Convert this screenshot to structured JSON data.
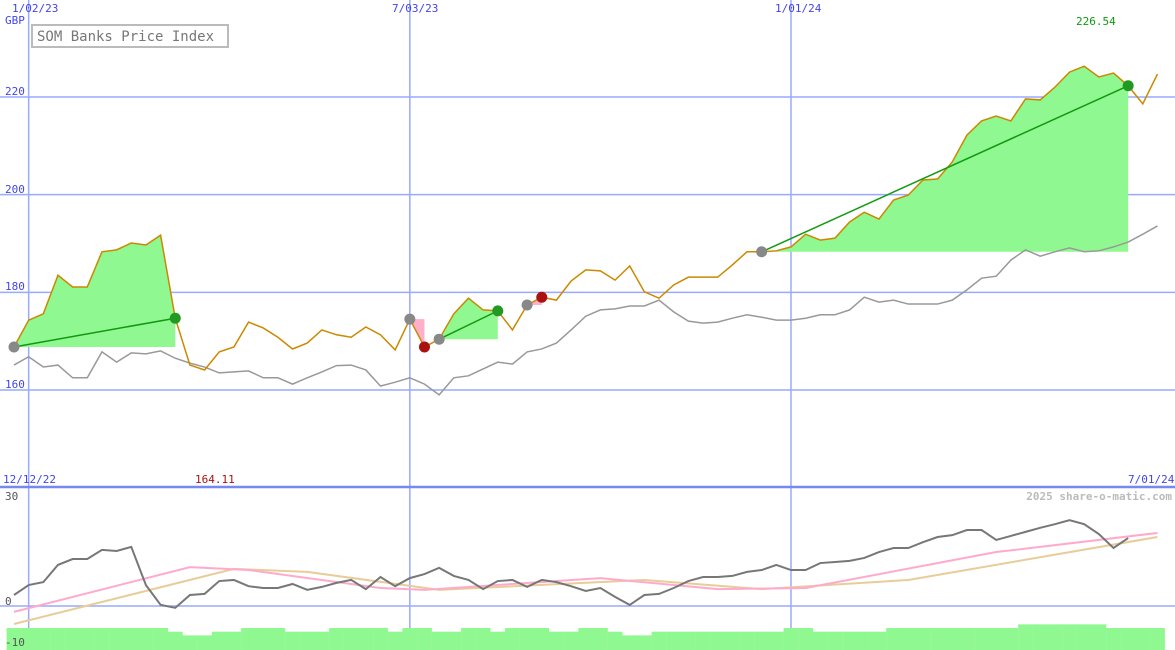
{
  "chart_data": [
    {
      "type": "line",
      "title": "SOM Banks Price Index",
      "ylabel": "GBP",
      "ylim": [
        154,
        230
      ],
      "y_ticks": [
        "160",
        "180",
        "200",
        "220"
      ],
      "x_ticks": [
        "1/02/23",
        "7/03/23",
        "1/01/24"
      ],
      "x_tick_dates": [
        "2023-01-02",
        "2023-07-03",
        "2024-01-01"
      ],
      "grid": true,
      "max_label": "226.54",
      "colors": {
        "price": "#cc8800",
        "benchmark": "#999999",
        "grid": "#99aaff",
        "gain_fill": "#90f890",
        "loss_fill": "#ffb0c8",
        "trade_line": "#119911",
        "max_label": "#119911",
        "min_label": "#aa1111"
      },
      "dates": [
        "2022-12-26",
        "2023-01-02",
        "2023-01-09",
        "2023-01-16",
        "2023-01-23",
        "2023-01-30",
        "2023-02-06",
        "2023-02-13",
        "2023-02-20",
        "2023-02-27",
        "2023-03-06",
        "2023-03-13",
        "2023-03-20",
        "2023-03-27",
        "2023-04-03",
        "2023-04-10",
        "2023-04-17",
        "2023-04-24",
        "2023-05-01",
        "2023-05-08",
        "2023-05-15",
        "2023-05-22",
        "2023-05-29",
        "2023-06-05",
        "2023-06-12",
        "2023-06-19",
        "2023-06-26",
        "2023-07-03",
        "2023-07-10",
        "2023-07-17",
        "2023-07-24",
        "2023-07-31",
        "2023-08-07",
        "2023-08-14",
        "2023-08-21",
        "2023-08-28",
        "2023-09-04",
        "2023-09-11",
        "2023-09-18",
        "2023-09-25",
        "2023-10-02",
        "2023-10-09",
        "2023-10-16",
        "2023-10-23",
        "2023-10-30",
        "2023-11-06",
        "2023-11-13",
        "2023-11-20",
        "2023-11-27",
        "2023-12-04",
        "2023-12-11",
        "2023-12-18",
        "2023-12-25",
        "2024-01-01",
        "2024-01-08",
        "2024-01-15",
        "2024-01-22",
        "2024-01-29",
        "2024-02-05",
        "2024-02-12",
        "2024-02-19",
        "2024-02-26",
        "2024-03-04",
        "2024-03-11",
        "2024-03-18",
        "2024-03-25",
        "2024-04-01",
        "2024-04-08",
        "2024-04-15",
        "2024-04-22",
        "2024-04-29",
        "2024-05-06",
        "2024-05-13",
        "2024-05-20",
        "2024-05-27",
        "2024-06-03",
        "2024-06-10",
        "2024-06-17",
        "2024-06-24"
      ],
      "series": [
        {
          "key": "price",
          "values": [
            168.8,
            174.3,
            175.6,
            183.5,
            181.1,
            181.1,
            188.3,
            188.7,
            190.1,
            189.7,
            191.7,
            174.7,
            165.1,
            164.1,
            167.8,
            168.8,
            173.9,
            172.7,
            170.8,
            168.4,
            169.6,
            172.3,
            171.3,
            170.8,
            172.9,
            171.3,
            168.2,
            174.5,
            168.8,
            170.4,
            175.6,
            178.8,
            176.4,
            176.2,
            172.3,
            177.4,
            179.0,
            178.4,
            182.3,
            184.6,
            184.4,
            182.5,
            185.4,
            180.1,
            178.8,
            181.5,
            183.1,
            183.1,
            183.1,
            185.6,
            188.3,
            188.3,
            188.5,
            189.3,
            191.9,
            190.7,
            191.1,
            194.4,
            196.4,
            195.0,
            198.9,
            199.9,
            203.0,
            203.2,
            206.7,
            212.2,
            215.1,
            216.1,
            215.1,
            219.6,
            219.4,
            222.0,
            225.1,
            226.3,
            224.1,
            224.9,
            222.3,
            218.6,
            224.7
          ]
        },
        {
          "key": "benchmark",
          "values": [
            165.1,
            166.8,
            164.7,
            165.1,
            162.5,
            162.5,
            167.8,
            165.7,
            167.6,
            167.4,
            168.0,
            166.5,
            165.5,
            164.7,
            163.5,
            163.7,
            163.9,
            162.5,
            162.5,
            161.2,
            162.5,
            163.7,
            165.0,
            165.1,
            164.1,
            160.8,
            161.6,
            162.5,
            161.2,
            159.0,
            162.5,
            162.9,
            164.3,
            165.7,
            165.3,
            167.8,
            168.4,
            169.6,
            172.3,
            175.1,
            176.4,
            176.6,
            177.2,
            177.2,
            178.4,
            176.0,
            174.1,
            173.7,
            173.9,
            174.7,
            175.4,
            174.9,
            174.3,
            174.3,
            174.7,
            175.4,
            175.4,
            176.4,
            179.0,
            178.0,
            178.4,
            177.6,
            177.6,
            177.6,
            178.4,
            180.5,
            182.9,
            183.3,
            186.6,
            188.7,
            187.4,
            188.3,
            189.1,
            188.3,
            188.5,
            189.3,
            190.3,
            191.9,
            193.6
          ]
        }
      ],
      "trades": [
        {
          "entry": "2022-12-26",
          "exit": "2023-03-13",
          "result": "gain"
        },
        {
          "entry": "2023-07-03",
          "exit": "2023-07-10",
          "result": "loss"
        },
        {
          "entry": "2023-07-17",
          "exit": "2023-08-14",
          "result": "gain"
        },
        {
          "entry": "2023-08-28",
          "exit": "2023-09-04",
          "result": "loss"
        },
        {
          "entry": "2023-12-18",
          "exit": "2024-06-10",
          "result": "gain"
        }
      ]
    },
    {
      "type": "line",
      "ylim": [
        -12,
        34
      ],
      "y_ticks": [
        "30",
        "0",
        "-10"
      ],
      "x_start_label": "12/12/22",
      "x_end_label": "7/01/24",
      "min_label": "164.11",
      "watermark": "2025 share-o-matic.com",
      "colors": {
        "momentum": "#777777",
        "fast_avg": "#ffaacc",
        "slow_avg": "#e8cc99",
        "volume": "#90f890"
      },
      "momentum": [
        3.0,
        5.7,
        6.5,
        11.2,
        12.8,
        12.8,
        15.3,
        15.0,
        16.1,
        5.7,
        0.3,
        -0.5,
        3.0,
        3.3,
        6.8,
        7.1,
        5.4,
        4.9,
        4.9,
        6.0,
        4.4,
        5.2,
        6.3,
        7.1,
        4.6,
        7.9,
        5.4,
        7.6,
        8.7,
        10.4,
        8.2,
        7.1,
        4.6,
        6.8,
        7.1,
        5.2,
        7.1,
        6.5,
        5.4,
        4.1,
        4.9,
        2.5,
        0.3,
        3.0,
        3.3,
        4.9,
        6.8,
        7.9,
        7.9,
        8.2,
        9.3,
        9.8,
        11.2,
        9.8,
        9.8,
        11.7,
        12.0,
        12.3,
        13.1,
        14.7,
        15.8,
        15.8,
        17.4,
        18.8,
        19.3,
        20.7,
        20.7,
        18.0,
        19.1,
        20.2,
        21.3,
        22.3,
        23.4,
        22.3,
        19.6,
        15.8,
        18.5
      ],
      "fast_avg": [
        [
          "2022-12-26",
          -1.6
        ],
        [
          "2023-03-20",
          10.6
        ],
        [
          "2023-04-17",
          9.8
        ],
        [
          "2023-06-19",
          4.9
        ],
        [
          "2023-07-10",
          4.4
        ],
        [
          "2023-10-02",
          7.6
        ],
        [
          "2023-11-27",
          4.6
        ],
        [
          "2024-01-08",
          4.9
        ],
        [
          "2024-04-08",
          14.7
        ],
        [
          "2024-06-24",
          19.9
        ]
      ],
      "slow_avg": [
        [
          "2022-12-26",
          -4.9
        ],
        [
          "2023-04-10",
          10.1
        ],
        [
          "2023-05-15",
          9.3
        ],
        [
          "2023-07-17",
          4.4
        ],
        [
          "2023-10-23",
          7.1
        ],
        [
          "2023-12-18",
          4.6
        ],
        [
          "2024-02-26",
          7.1
        ],
        [
          "2024-06-24",
          18.8
        ]
      ],
      "volume": [
        -6,
        -6,
        -6,
        -6,
        -6,
        -6,
        -6,
        -6,
        -6,
        -6,
        -6,
        -7,
        -8,
        -8,
        -7,
        -7,
        -6,
        -6,
        -6,
        -7,
        -7,
        -7,
        -6,
        -6,
        -6,
        -6,
        -7,
        -6,
        -6,
        -7,
        -7,
        -6,
        -6,
        -7,
        -6,
        -6,
        -6,
        -7,
        -7,
        -6,
        -6,
        -7,
        -8,
        -8,
        -7,
        -7,
        -7,
        -7,
        -7,
        -7,
        -7,
        -7,
        -7,
        -6,
        -6,
        -7,
        -7,
        -7,
        -7,
        -7,
        -6,
        -6,
        -6,
        -6,
        -6,
        -6,
        -6,
        -6,
        -6,
        -5,
        -5,
        -5,
        -5,
        -5,
        -5,
        -6,
        -6,
        -6,
        -6
      ]
    }
  ]
}
